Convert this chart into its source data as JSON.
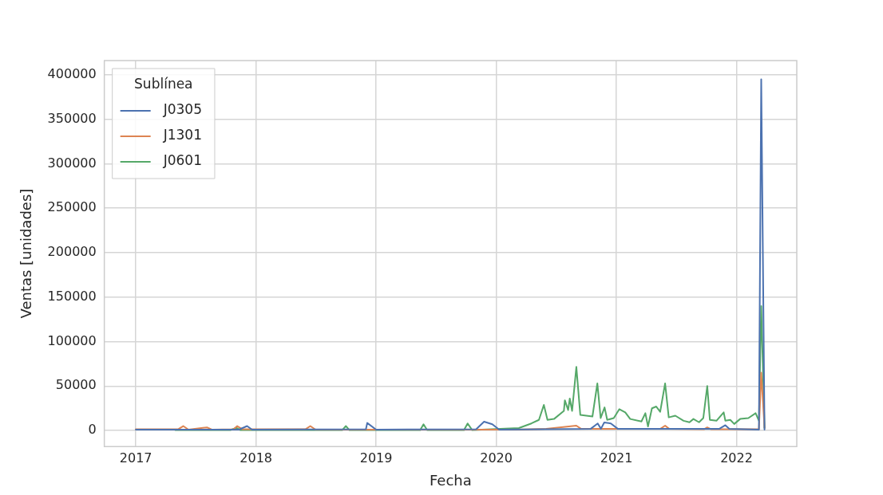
{
  "chart_data": {
    "type": "line",
    "xlabel": "Fecha",
    "ylabel": "Ventas [unidades]",
    "legend_title": "Sublínea",
    "legend": "top left",
    "grid": true,
    "line_style": "solid",
    "marker": "none",
    "xlim": [
      "2016-09-27",
      "2022-07-03"
    ],
    "xticks": [
      "2017",
      "2018",
      "2019",
      "2020",
      "2021",
      "2022"
    ],
    "ylim": [
      -18000,
      416000
    ],
    "yticks": [
      0,
      50000,
      100000,
      150000,
      200000,
      250000,
      300000,
      350000,
      400000
    ],
    "series": [
      {
        "name": "J0305",
        "color": "#4c72b0",
        "x": [
          "2017-01-01",
          "2017-11-10",
          "2017-12-05",
          "2017-12-20",
          "2018-12-01",
          "2018-12-05",
          "2019-01-01",
          "2019-11-01",
          "2019-11-25",
          "2019-12-20",
          "2020-01-10",
          "2020-10-15",
          "2020-11-05",
          "2020-11-15",
          "2020-11-25",
          "2020-12-15",
          "2021-01-05",
          "2021-11-10",
          "2021-11-28",
          "2021-12-10",
          "2022-03-10",
          "2022-03-17",
          "2022-03-27"
        ],
        "values": [
          1000,
          1000,
          5000,
          1000,
          1500,
          8500,
          1000,
          1500,
          10000,
          7000,
          1000,
          2000,
          8000,
          2000,
          9000,
          8000,
          2000,
          2000,
          6000,
          2000,
          1000,
          395000,
          1000
        ]
      },
      {
        "name": "J1301",
        "color": "#dd8452",
        "x": [
          "2017-01-01",
          "2017-05-10",
          "2017-05-25",
          "2017-06-10",
          "2017-08-05",
          "2017-08-20",
          "2017-10-25",
          "2017-11-05",
          "2017-11-20",
          "2018-06-01",
          "2018-06-15",
          "2018-07-01",
          "2019-01-01",
          "2020-03-01",
          "2020-06-01",
          "2020-09-01",
          "2020-09-15",
          "2021-05-15",
          "2021-05-29",
          "2021-06-10",
          "2021-09-25",
          "2021-10-04",
          "2021-10-15",
          "2022-03-10",
          "2022-03-17",
          "2022-03-27"
        ],
        "values": [
          1500,
          1500,
          5000,
          1000,
          3500,
          1000,
          1500,
          5000,
          1500,
          1500,
          5000,
          1000,
          1000,
          1000,
          2000,
          5500,
          2000,
          2000,
          5500,
          2000,
          1500,
          3500,
          1500,
          1500,
          65000,
          3000
        ]
      },
      {
        "name": "J0601",
        "color": "#55a868",
        "x": [
          "2017-05-01",
          "2017-10-15",
          "2017-11-03",
          "2017-11-15",
          "2018-09-20",
          "2018-10-01",
          "2018-10-12",
          "2019-05-15",
          "2019-05-25",
          "2019-06-05",
          "2019-09-25",
          "2019-10-06",
          "2019-10-20",
          "2020-03-10",
          "2020-04-17",
          "2020-05-10",
          "2020-05-25",
          "2020-06-05",
          "2020-06-25",
          "2020-07-25",
          "2020-07-28",
          "2020-08-07",
          "2020-08-12",
          "2020-08-19",
          "2020-09-01",
          "2020-09-13",
          "2020-10-20",
          "2020-11-04",
          "2020-11-14",
          "2020-11-26",
          "2020-12-04",
          "2020-12-24",
          "2021-01-10",
          "2021-01-28",
          "2021-02-12",
          "2021-03-18",
          "2021-03-30",
          "2021-04-07",
          "2021-04-19",
          "2021-05-02",
          "2021-05-14",
          "2021-05-29",
          "2021-06-09",
          "2021-06-29",
          "2021-07-24",
          "2021-08-11",
          "2021-08-23",
          "2021-09-09",
          "2021-09-22",
          "2021-10-04",
          "2021-10-12",
          "2021-11-01",
          "2021-11-23",
          "2021-11-28",
          "2021-12-13",
          "2021-12-25",
          "2022-01-12",
          "2022-02-06",
          "2022-02-28",
          "2022-03-10",
          "2022-03-17",
          "2022-03-27"
        ],
        "values": [
          500,
          500,
          3000,
          500,
          500,
          5000,
          500,
          500,
          7000,
          500,
          500,
          8000,
          500,
          2800,
          8000,
          12000,
          28800,
          12000,
          13000,
          22000,
          34000,
          23000,
          36000,
          22000,
          71500,
          17600,
          15800,
          53000,
          14000,
          26000,
          12000,
          14000,
          24000,
          20400,
          13000,
          10200,
          19500,
          4600,
          25000,
          27000,
          21000,
          53000,
          14800,
          16700,
          11000,
          9300,
          13000,
          9300,
          14000,
          50000,
          12000,
          11000,
          20400,
          11000,
          12000,
          7400,
          13000,
          14000,
          19500,
          11000,
          140000,
          2800
        ]
      }
    ]
  }
}
